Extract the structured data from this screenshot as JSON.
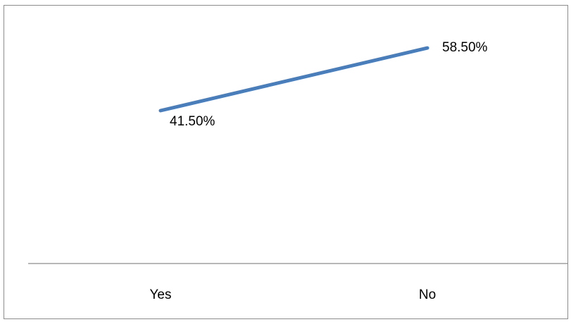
{
  "chart_data": {
    "type": "line",
    "categories": [
      "Yes",
      "No"
    ],
    "series": [
      {
        "values": [
          41.5,
          58.5
        ],
        "labels": [
          "41.50%",
          "58.50%"
        ],
        "color": "#4a7ebb"
      }
    ],
    "title": "",
    "xlabel": "",
    "ylabel": "",
    "ylim": [
      0,
      70
    ],
    "grid": false,
    "legend": "none",
    "axis_color": "#8c8c8c"
  }
}
